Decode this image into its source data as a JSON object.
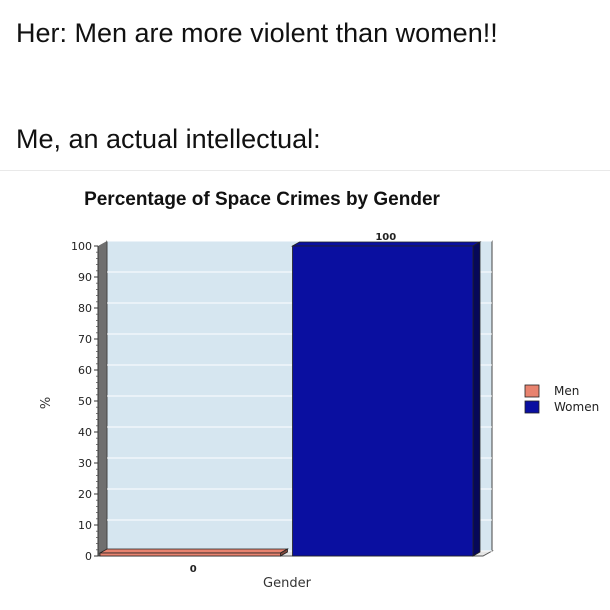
{
  "meme": {
    "line1": "Her: Men are more violent than women!!",
    "line2": "Me, an actual intellectual:"
  },
  "colors": {
    "men": "#e8836f",
    "women": "#0a0fa0",
    "plot_background": "#d6e6f0"
  },
  "chart_data": {
    "type": "bar",
    "title": "Percentage of Space Crimes by Gender",
    "xlabel": "Gender",
    "ylabel": "%",
    "categories": [
      "Men",
      "Women"
    ],
    "values": [
      0,
      100
    ],
    "data_labels": [
      "0",
      "100"
    ],
    "ylim": [
      0,
      100
    ],
    "yticks": [
      0,
      10,
      20,
      30,
      40,
      50,
      60,
      70,
      80,
      90,
      100
    ],
    "legend": {
      "entries": [
        "Men",
        "Women"
      ],
      "position": "right"
    },
    "grid": true,
    "style": "3d"
  }
}
